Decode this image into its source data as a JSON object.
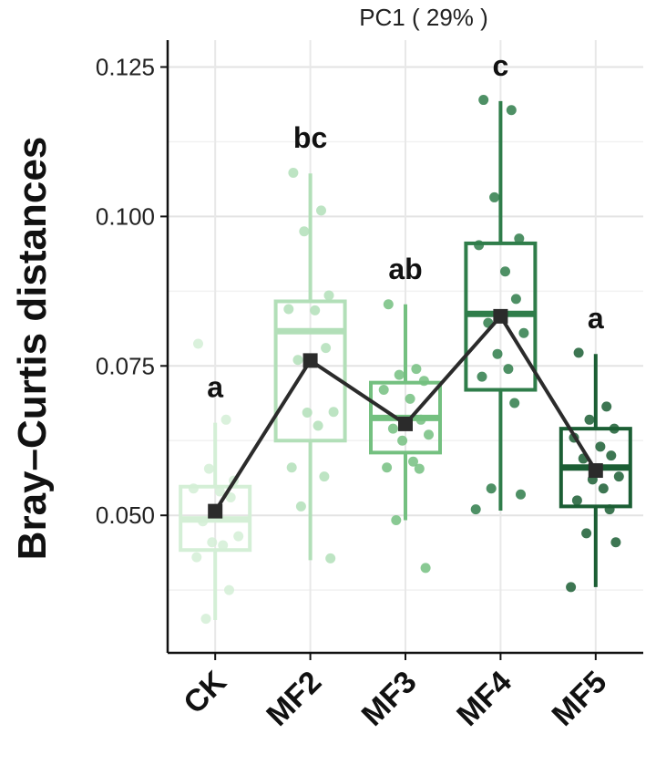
{
  "chart_data": {
    "type": "box",
    "title": "PC1 ( 29% )",
    "ylabel": "Bray–Curtis distances",
    "xlabel": "",
    "ylim": [
      0.027,
      0.1295
    ],
    "yticks": [
      0.05,
      0.075,
      0.1,
      0.125
    ],
    "ytick_labels": [
      "0.050",
      "0.075",
      "0.100",
      "0.125"
    ],
    "grid": true,
    "legend": "none",
    "categories": [
      "CK",
      "MF2",
      "MF3",
      "MF4",
      "MF5"
    ],
    "groups": [
      {
        "name": "CK",
        "letter": "a",
        "color": "#d4efd6",
        "q1": 0.0442,
        "median": 0.0493,
        "q3": 0.0548,
        "whisker_low": 0.0325,
        "whisker_high": 0.0655,
        "mean": 0.0507,
        "points": [
          0.0787,
          0.066,
          0.0578,
          0.0558,
          0.0545,
          0.054,
          0.053,
          0.049,
          0.0465,
          0.0455,
          0.045,
          0.043,
          0.0375,
          0.0327
        ]
      },
      {
        "name": "MF2",
        "letter": "bc",
        "color": "#b2dfb8",
        "q1": 0.0625,
        "median": 0.0808,
        "q3": 0.0858,
        "whisker_low": 0.0425,
        "whisker_high": 0.1072,
        "mean": 0.0759,
        "points": [
          0.1073,
          0.101,
          0.0975,
          0.0868,
          0.0845,
          0.0843,
          0.078,
          0.076,
          0.0673,
          0.0672,
          0.065,
          0.058,
          0.0565,
          0.0515,
          0.0428
        ]
      },
      {
        "name": "MF3",
        "letter": "ab",
        "color": "#74c080",
        "q1": 0.0605,
        "median": 0.0663,
        "q3": 0.0722,
        "whisker_low": 0.0492,
        "whisker_high": 0.0853,
        "mean": 0.0653,
        "points": [
          0.0853,
          0.0745,
          0.0735,
          0.0725,
          0.071,
          0.0695,
          0.066,
          0.0645,
          0.0635,
          0.0625,
          0.059,
          0.058,
          0.0578,
          0.0492,
          0.0412
        ]
      },
      {
        "name": "MF4",
        "letter": "c",
        "color": "#2f7d4a",
        "q1": 0.071,
        "median": 0.0837,
        "q3": 0.0955,
        "whisker_low": 0.0508,
        "whisker_high": 0.1193,
        "mean": 0.0833,
        "points": [
          0.1195,
          0.1178,
          0.1032,
          0.0963,
          0.0952,
          0.0908,
          0.0862,
          0.0822,
          0.0805,
          0.077,
          0.0745,
          0.0732,
          0.0688,
          0.0545,
          0.0535,
          0.051
        ]
      },
      {
        "name": "MF5",
        "letter": "a",
        "color": "#1b5e34",
        "q1": 0.0515,
        "median": 0.058,
        "q3": 0.0645,
        "whisker_low": 0.038,
        "whisker_high": 0.077,
        "mean": 0.0575,
        "points": [
          0.0772,
          0.0682,
          0.066,
          0.0645,
          0.063,
          0.0615,
          0.06,
          0.0595,
          0.0565,
          0.056,
          0.0545,
          0.0525,
          0.051,
          0.047,
          0.0455,
          0.038
        ]
      }
    ],
    "mean_line_color": "#2b2b2b"
  }
}
